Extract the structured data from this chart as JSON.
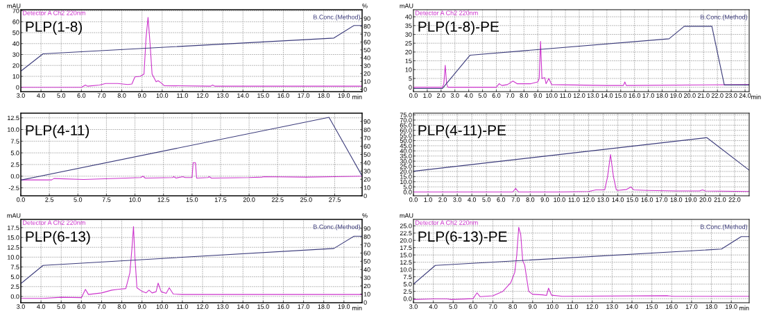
{
  "chart_data": [
    {
      "type": "line",
      "title": "PLP(1-8)",
      "xlabel": "min",
      "ylabel": "mAU",
      "y2label": "%",
      "grid": true,
      "legend": false,
      "xlim": [
        3.0,
        19.9
      ],
      "xticks": [
        {
          "value": 3,
          "label": "3.0"
        },
        {
          "value": 4,
          "label": "4.0"
        },
        {
          "value": 5,
          "label": "5.0"
        },
        {
          "value": 6,
          "label": "6.0"
        },
        {
          "value": 7,
          "label": "7.0"
        },
        {
          "value": 8,
          "label": "8.0"
        },
        {
          "value": 9,
          "label": "9.0"
        },
        {
          "value": 10,
          "label": "10.0"
        },
        {
          "value": 11,
          "label": "11.0"
        },
        {
          "value": 12,
          "label": "12.0"
        },
        {
          "value": 13,
          "label": "13.0"
        },
        {
          "value": 14,
          "label": "14.0"
        },
        {
          "value": 15,
          "label": "15.0"
        },
        {
          "value": 16,
          "label": "16.0"
        },
        {
          "value": 17,
          "label": "17.0"
        },
        {
          "value": 18,
          "label": "18.0"
        },
        {
          "value": 19,
          "label": "19.0"
        }
      ],
      "ylim": [
        -4,
        71
      ],
      "yticks": [
        0,
        10,
        20,
        30,
        40,
        50,
        60,
        70
      ],
      "y2lim": [
        -3,
        101
      ],
      "y2ticks": [
        0,
        10,
        20,
        30,
        40,
        50,
        60,
        70,
        80,
        90
      ],
      "series": [
        {
          "name": "Detector A Ch2 220nm",
          "color": "#cc33cc",
          "x": [
            3.0,
            6.0,
            6.2,
            6.3,
            6.9,
            7.2,
            7.8,
            8.3,
            8.5,
            8.65,
            8.9,
            9.1,
            9.2,
            9.3,
            9.4,
            9.5,
            9.7,
            9.8,
            9.95,
            10.1,
            12.4,
            12.5,
            12.6,
            19.9
          ],
          "values": [
            0,
            0,
            2,
            1,
            2,
            3.5,
            3.5,
            2.5,
            3,
            9.5,
            10,
            12,
            45,
            64,
            40,
            12,
            5,
            6,
            4,
            1.5,
            1,
            2,
            1,
            1
          ]
        },
        {
          "name": "B.Conc.(Method)",
          "color": "#3a3a7a",
          "axis": "y2",
          "x": [
            3.0,
            4.1,
            18.5,
            19.5,
            19.9
          ],
          "values": [
            23,
            45,
            65,
            81,
            81
          ]
        }
      ]
    },
    {
      "type": "line",
      "title": "PLP(1-8)-PE",
      "xlabel": "min",
      "ylabel": "mAU",
      "grid": true,
      "legend": false,
      "xlim": [
        0,
        24.3
      ],
      "xticks": [
        {
          "value": 0,
          "label": "0.0"
        },
        {
          "value": 1,
          "label": "1.0"
        },
        {
          "value": 2,
          "label": "2.0"
        },
        {
          "value": 3,
          "label": "3.0"
        },
        {
          "value": 4,
          "label": "4.0"
        },
        {
          "value": 5,
          "label": "5.0"
        },
        {
          "value": 6,
          "label": "6.0"
        },
        {
          "value": 7,
          "label": "7.0"
        },
        {
          "value": 8,
          "label": "8.0"
        },
        {
          "value": 9,
          "label": "9.0"
        },
        {
          "value": 10,
          "label": "10.0"
        },
        {
          "value": 11,
          "label": "11.0"
        },
        {
          "value": 12,
          "label": "12.0"
        },
        {
          "value": 13,
          "label": "13.0"
        },
        {
          "value": 14,
          "label": "14.0"
        },
        {
          "value": 15,
          "label": "15.0"
        },
        {
          "value": 16,
          "label": "16.0"
        },
        {
          "value": 17,
          "label": "17.0"
        },
        {
          "value": 18,
          "label": "18.0"
        },
        {
          "value": 19,
          "label": "19.0"
        },
        {
          "value": 20,
          "label": "20.0"
        },
        {
          "value": 21,
          "label": "21.0"
        },
        {
          "value": 22,
          "label": "22.0"
        },
        {
          "value": 23,
          "label": "23.0"
        },
        {
          "value": 24,
          "label": "24.0"
        }
      ],
      "ylim": [
        -2.5,
        44
      ],
      "yticks": [
        0,
        5,
        10,
        15,
        20,
        25,
        30,
        35,
        40
      ],
      "series": [
        {
          "name": "Detector A Ch2 220nm",
          "color": "#cc33cc",
          "x": [
            0,
            2.1,
            2.2,
            2.3,
            2.4,
            2.5,
            6.0,
            6.2,
            6.4,
            6.8,
            7.2,
            7.5,
            8.5,
            9.0,
            9.1,
            9.2,
            9.3,
            9.5,
            9.6,
            9.8,
            10.0,
            14.0,
            15.2,
            15.3,
            15.4,
            24.3
          ],
          "values": [
            0,
            0,
            2,
            12.5,
            2,
            0,
            0,
            2,
            1,
            1.5,
            3.5,
            2,
            2,
            3,
            5,
            26,
            5,
            5.5,
            2,
            5,
            1.5,
            1,
            1,
            3,
            1,
            1.5
          ]
        },
        {
          "name": "B.Conc.(Method)",
          "color": "#3a3a7a",
          "x": [
            0,
            2.1,
            4.1,
            18.5,
            19.6,
            21.6,
            22.5,
            24.3
          ],
          "values": [
            -0.7,
            -0.7,
            18.2,
            27.5,
            34.6,
            34.6,
            1.3,
            1.3
          ]
        }
      ]
    },
    {
      "type": "line",
      "title": "PLP(4-11)",
      "grid": true,
      "legend": false,
      "xlim": [
        0,
        29.9
      ],
      "xticks": [
        {
          "value": 0,
          "label": "0.0"
        },
        {
          "value": 2.5,
          "label": "2.5"
        },
        {
          "value": 5,
          "label": "5.0"
        },
        {
          "value": 7.5,
          "label": "7.5"
        },
        {
          "value": 10,
          "label": "10.0"
        },
        {
          "value": 12.5,
          "label": "12.5"
        },
        {
          "value": 15,
          "label": "15.0"
        },
        {
          "value": 17.5,
          "label": "17.5"
        },
        {
          "value": 20,
          "label": "20.0"
        },
        {
          "value": 22.5,
          "label": "22.5"
        },
        {
          "value": 25,
          "label": "25.0"
        },
        {
          "value": 27.5,
          "label": "27.5"
        }
      ],
      "ylim": [
        -4.2,
        13.5
      ],
      "yticks": [
        {
          "value": -2.5,
          "label": "-2.5"
        },
        {
          "value": 0,
          "label": "0.0"
        },
        {
          "value": 2.5,
          "label": "2.5"
        },
        {
          "value": 5,
          "label": "5.0"
        },
        {
          "value": 7.5,
          "label": "7.5"
        },
        {
          "value": 10,
          "label": "10.0"
        },
        {
          "value": 12.5,
          "label": "12.5"
        }
      ],
      "y2lim": [
        0,
        100
      ],
      "y2ticks": [
        0,
        10,
        20,
        30,
        40,
        50,
        60,
        70,
        80,
        90
      ],
      "series": [
        {
          "color": "#cc33cc",
          "x": [
            0,
            2.7,
            2.9,
            5.5,
            9.2,
            10.5,
            10.7,
            10.9,
            13.3,
            13.4,
            13.6,
            14.2,
            14.4,
            15.0,
            15.1,
            15.3,
            15.4,
            16.4,
            16.5,
            16.7,
            20.0,
            21.1,
            21.3,
            25.0,
            29.9
          ],
          "values": [
            -0.8,
            -0.8,
            -0.5,
            -0.7,
            -0.4,
            -0.3,
            0.0,
            -0.4,
            -0.3,
            -0.1,
            -0.4,
            -0.1,
            -0.3,
            -0.3,
            2.9,
            2.9,
            -0.4,
            -0.3,
            -0.1,
            -0.4,
            -0.3,
            -0.2,
            -0.1,
            -0.2,
            0.0
          ]
        },
        {
          "color": "#3a3a7a",
          "axis": "y2",
          "x": [
            0,
            27.0,
            29.9
          ],
          "values": [
            19,
            95,
            24
          ]
        }
      ]
    },
    {
      "type": "line",
      "title": "PLP(4-11)-PE",
      "grid": true,
      "legend": false,
      "xlim": [
        0,
        23.0
      ],
      "xticks": [
        {
          "value": 0,
          "label": "0.0"
        },
        {
          "value": 1,
          "label": "1.0"
        },
        {
          "value": 2,
          "label": "2.0"
        },
        {
          "value": 3,
          "label": "3.0"
        },
        {
          "value": 4,
          "label": "4.0"
        },
        {
          "value": 5,
          "label": "5.0"
        },
        {
          "value": 6,
          "label": "6.0"
        },
        {
          "value": 7,
          "label": "7.0"
        },
        {
          "value": 8,
          "label": "8.0"
        },
        {
          "value": 9,
          "label": "9.0"
        },
        {
          "value": 10,
          "label": "10.0"
        },
        {
          "value": 11,
          "label": "11.0"
        },
        {
          "value": 12,
          "label": "12.0"
        },
        {
          "value": 13,
          "label": "13.0"
        },
        {
          "value": 14,
          "label": "14.0"
        },
        {
          "value": 15,
          "label": "15.0"
        },
        {
          "value": 16,
          "label": "16.0"
        },
        {
          "value": 17,
          "label": "17.0"
        },
        {
          "value": 18,
          "label": "18.0"
        },
        {
          "value": 19,
          "label": "19.0"
        },
        {
          "value": 20,
          "label": "20.0"
        },
        {
          "value": 21,
          "label": "21.0"
        },
        {
          "value": 22,
          "label": "22.0"
        }
      ],
      "ylim": [
        -3.7,
        76.7
      ],
      "yticks": [
        {
          "value": 0,
          "label": "0.0"
        },
        {
          "value": 5,
          "label": "5.0"
        },
        {
          "value": 10,
          "label": "10.0"
        },
        {
          "value": 15,
          "label": "15.0"
        },
        {
          "value": 20,
          "label": "20.0"
        },
        {
          "value": 25,
          "label": "25.0"
        },
        {
          "value": 30,
          "label": "30.0"
        },
        {
          "value": 35,
          "label": "35.0"
        },
        {
          "value": 40,
          "label": "40.0"
        },
        {
          "value": 45,
          "label": "45.0"
        },
        {
          "value": 50,
          "label": "50.0"
        },
        {
          "value": 55,
          "label": "55.0"
        },
        {
          "value": 60,
          "label": "60.0"
        },
        {
          "value": 65,
          "label": "65.0"
        },
        {
          "value": 70,
          "label": "70.0"
        },
        {
          "value": 75,
          "label": "75.0"
        }
      ],
      "series": [
        {
          "color": "#cc33cc",
          "x": [
            0,
            6.8,
            7.0,
            7.2,
            10.0,
            12.0,
            12.5,
            13.1,
            13.3,
            13.5,
            13.7,
            13.9,
            14.0,
            14.6,
            14.9,
            15.1,
            16.0,
            18.0,
            19.6,
            19.8,
            20.0,
            23.0
          ],
          "values": [
            0,
            0,
            3.5,
            0,
            0,
            0.5,
            2,
            2,
            15,
            36.5,
            15,
            2,
            1.5,
            2.5,
            4.9,
            2,
            1.5,
            1,
            1,
            2,
            1,
            0.5
          ]
        },
        {
          "color": "#3a3a7a",
          "x": [
            0,
            20.1,
            23.0
          ],
          "values": [
            20.2,
            52.9,
            21.2
          ]
        }
      ]
    },
    {
      "type": "line",
      "title": "PLP(6-13)",
      "xlabel": "min",
      "ylabel": "mAU",
      "y2label": "%",
      "grid": true,
      "legend": false,
      "xlim": [
        3.0,
        19.9
      ],
      "xticks": [
        {
          "value": 3,
          "label": "3.0"
        },
        {
          "value": 4,
          "label": "4.0"
        },
        {
          "value": 5,
          "label": "5.0"
        },
        {
          "value": 6,
          "label": "6.0"
        },
        {
          "value": 7,
          "label": "7.0"
        },
        {
          "value": 8,
          "label": "8.0"
        },
        {
          "value": 9,
          "label": "9.0"
        },
        {
          "value": 10,
          "label": "10.0"
        },
        {
          "value": 11,
          "label": "11.0"
        },
        {
          "value": 12,
          "label": "12.0"
        },
        {
          "value": 13,
          "label": "13.0"
        },
        {
          "value": 14,
          "label": "14.0"
        },
        {
          "value": 15,
          "label": "15.0"
        },
        {
          "value": 16,
          "label": "16.0"
        },
        {
          "value": 17,
          "label": "17.0"
        },
        {
          "value": 18,
          "label": "18.0"
        },
        {
          "value": 19,
          "label": "19.0"
        }
      ],
      "ylim": [
        -1.6,
        19.6
      ],
      "yticks": [
        {
          "value": 0,
          "label": "0.0"
        },
        {
          "value": 2.5,
          "label": "2.5"
        },
        {
          "value": 5,
          "label": "5.0"
        },
        {
          "value": 7.5,
          "label": "7.5"
        },
        {
          "value": 10,
          "label": "10.0"
        },
        {
          "value": 12.5,
          "label": "12.5"
        },
        {
          "value": 15,
          "label": "15.0"
        },
        {
          "value": 17.5,
          "label": "17.5"
        }
      ],
      "y2lim": [
        -0.5,
        101
      ],
      "y2ticks": [
        0,
        10,
        20,
        30,
        40,
        50,
        60,
        70,
        80,
        90
      ],
      "series": [
        {
          "name": "Detector A Ch2 220nm",
          "color": "#cc33cc",
          "x": [
            3.0,
            4.1,
            5.0,
            6.0,
            6.2,
            6.35,
            7.0,
            7.5,
            7.8,
            8.2,
            8.4,
            8.5,
            8.58,
            8.65,
            8.75,
            9.0,
            9.2,
            9.35,
            9.5,
            9.7,
            9.8,
            9.95,
            10.2,
            10.35,
            10.55,
            11.0,
            19.9
          ],
          "values": [
            -0.5,
            -0.5,
            -0.2,
            -0.3,
            1.8,
            0.5,
            0.9,
            1.6,
            1.8,
            2.0,
            6,
            12,
            17.8,
            10,
            2.2,
            1.3,
            0.9,
            1.6,
            0.9,
            1.2,
            3.4,
            1.2,
            0.8,
            2.2,
            0.6,
            0.5,
            0.5
          ]
        },
        {
          "name": "B.Conc.(Method)",
          "color": "#3a3a7a",
          "axis": "y2",
          "x": [
            3.0,
            4.1,
            18.5,
            19.5,
            19.9
          ],
          "values": [
            22.7,
            45,
            65.6,
            80.5,
            80.5
          ]
        }
      ]
    },
    {
      "type": "line",
      "title": "PLP(6-13)-PE",
      "xlabel": "min",
      "ylabel": "mAU",
      "grid": true,
      "legend": false,
      "xlim": [
        3.0,
        19.9
      ],
      "xticks": [
        {
          "value": 3,
          "label": "3.0"
        },
        {
          "value": 4,
          "label": "4.0"
        },
        {
          "value": 5,
          "label": "5.0"
        },
        {
          "value": 6,
          "label": "6.0"
        },
        {
          "value": 7,
          "label": "7.0"
        },
        {
          "value": 8,
          "label": "8.0"
        },
        {
          "value": 9,
          "label": "9.0"
        },
        {
          "value": 10,
          "label": "10.0"
        },
        {
          "value": 11,
          "label": "11.0"
        },
        {
          "value": 12,
          "label": "12.0"
        },
        {
          "value": 13,
          "label": "13.0"
        },
        {
          "value": 14,
          "label": "14.0"
        },
        {
          "value": 15,
          "label": "15.0"
        },
        {
          "value": 16,
          "label": "16.0"
        },
        {
          "value": 17,
          "label": "17.0"
        },
        {
          "value": 18,
          "label": "18.0"
        },
        {
          "value": 19,
          "label": "19.0"
        }
      ],
      "ylim": [
        -1.4,
        27.2
      ],
      "yticks": [
        {
          "value": 0,
          "label": "0.0"
        },
        {
          "value": 2.5,
          "label": "2.5"
        },
        {
          "value": 5,
          "label": "5.0"
        },
        {
          "value": 7.5,
          "label": "7.5"
        },
        {
          "value": 10,
          "label": "10.0"
        },
        {
          "value": 12.5,
          "label": "12.5"
        },
        {
          "value": 15,
          "label": "15.0"
        },
        {
          "value": 17.5,
          "label": "17.5"
        },
        {
          "value": 20,
          "label": "20.0"
        },
        {
          "value": 22.5,
          "label": "22.5"
        },
        {
          "value": 25,
          "label": "25.0"
        }
      ],
      "series": [
        {
          "name": "Detector A Ch2 220nm",
          "color": "#cc33cc",
          "x": [
            3.0,
            4.0,
            4.7,
            4.9,
            6.0,
            6.2,
            6.35,
            7.0,
            7.5,
            7.9,
            8.1,
            8.2,
            8.3,
            8.4,
            8.5,
            8.6,
            8.7,
            8.8,
            9.0,
            9.5,
            9.7,
            9.8,
            9.95,
            10.5,
            15.8,
            16.1,
            19.9
          ],
          "values": [
            -0.3,
            -0.1,
            -0.1,
            -0.3,
            0.0,
            2.0,
            0.7,
            1.0,
            2.5,
            5.5,
            9,
            15,
            24.5,
            22,
            13,
            11.5,
            7,
            2.5,
            1.5,
            1.3,
            1.1,
            3.6,
            1.2,
            0.8,
            1.0,
            0.8,
            0.8
          ]
        },
        {
          "name": "B.Conc.(Method)",
          "color": "#3a3a7a",
          "x": [
            3.0,
            4.1,
            18.5,
            19.5,
            19.9
          ],
          "values": [
            5.0,
            11.4,
            17.0,
            21.3,
            21.3
          ]
        }
      ]
    }
  ]
}
